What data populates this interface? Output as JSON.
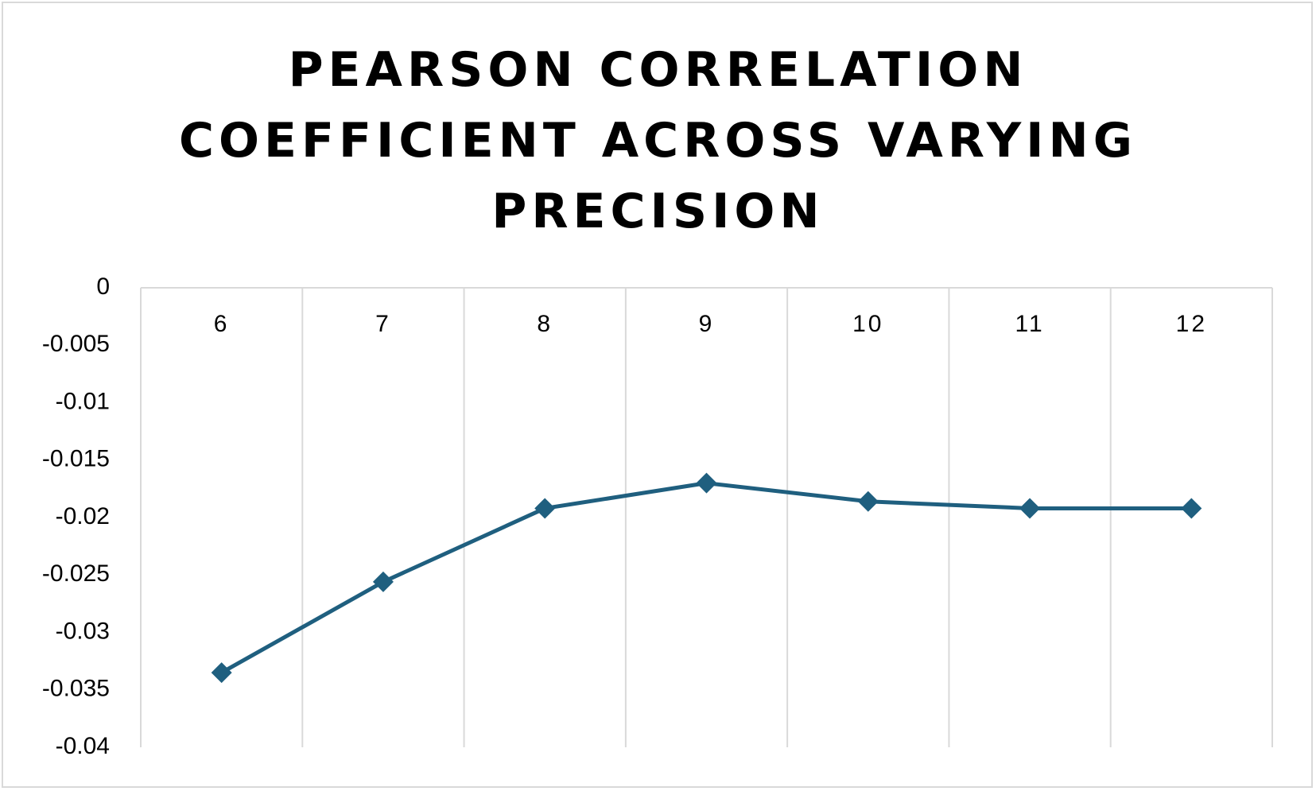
{
  "chart_data": {
    "type": "line",
    "title_lines": [
      "PEARSON CORRELATION",
      "COEFFICIENT ACROSS VARYING",
      "PRECISION"
    ],
    "categories": [
      "6",
      "7",
      "8",
      "9",
      "10",
      "11",
      "12"
    ],
    "series": [
      {
        "values": [
          -0.0335,
          -0.0256,
          -0.0192,
          -0.017,
          -0.0186,
          -0.0192,
          -0.0192
        ]
      }
    ],
    "ylim": [
      -0.04,
      0
    ],
    "yticks": [
      "0",
      "-0.005",
      "-0.01",
      "-0.015",
      "-0.02",
      "-0.025",
      "-0.03",
      "-0.035",
      "-0.04"
    ],
    "ytick_values": [
      0,
      -0.005,
      -0.01,
      -0.015,
      -0.02,
      -0.025,
      -0.03,
      -0.035,
      -0.04
    ],
    "xlabel": "",
    "ylabel": "",
    "grid": "vertical",
    "legend": "none",
    "line_color": "#1f5f7f",
    "grid_color": "#d9d9d9"
  }
}
